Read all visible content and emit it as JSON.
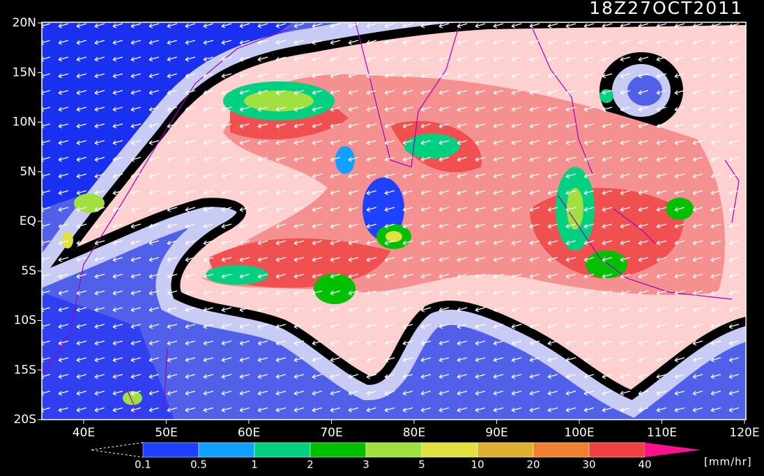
{
  "title": "18Z27OCT2011",
  "lat_labels": [
    "20N",
    "15N",
    "10N",
    "5N",
    "EQ",
    "5S",
    "10S",
    "15S",
    "20S"
  ],
  "lon_labels": [
    "40E",
    "50E",
    "60E",
    "70E",
    "80E",
    "90E",
    "100E",
    "110E",
    "120E"
  ],
  "colorbar": {
    "levels": [
      "0.1",
      "0.5",
      "1",
      "2",
      "3",
      "5",
      "10",
      "20",
      "30",
      "40"
    ],
    "colors": [
      "#2040ff",
      "#10a0ff",
      "#00d080",
      "#00c000",
      "#a0e040",
      "#e0e040",
      "#e0b030",
      "#f08030",
      "#f04040",
      "#ff1090"
    ],
    "unit": "[mm/hr]"
  }
}
